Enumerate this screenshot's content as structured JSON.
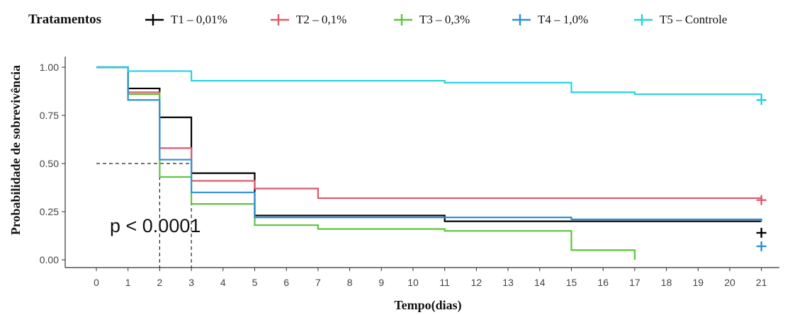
{
  "chart_data": {
    "type": "line",
    "step": true,
    "legend_title": "Tratamentos",
    "legend_position": "top",
    "xlabel": "Tempo(dias)",
    "ylabel": "Probabilidade de sobrevivência",
    "xlim": [
      0,
      21
    ],
    "ylim": [
      0,
      1
    ],
    "x_ticks": [
      "0",
      "1",
      "2",
      "3",
      "4",
      "5",
      "6",
      "7",
      "8",
      "9",
      "10",
      "11",
      "12",
      "13",
      "14",
      "15",
      "16",
      "17",
      "18",
      "19",
      "20",
      "21"
    ],
    "y_ticks": [
      "0.00",
      "0.25",
      "0.50",
      "0.75",
      "1.00"
    ],
    "annotation": "p < 0.0001",
    "median_line": {
      "y": 0.5,
      "x": [
        2,
        3
      ]
    },
    "series": [
      {
        "name": "T1 – 0,01%",
        "color": "#000000",
        "points": [
          [
            0,
            1.0
          ],
          [
            1,
            0.89
          ],
          [
            2,
            0.74
          ],
          [
            3,
            0.45
          ],
          [
            5,
            0.23
          ],
          [
            7,
            0.23
          ],
          [
            11,
            0.2
          ],
          [
            15,
            0.2
          ],
          [
            21,
            0.2
          ]
        ],
        "censor": [
          [
            21,
            0.14
          ]
        ]
      },
      {
        "name": "T2 – 0,1%",
        "color": "#e05a6a",
        "points": [
          [
            0,
            1.0
          ],
          [
            1,
            0.87
          ],
          [
            2,
            0.58
          ],
          [
            3,
            0.41
          ],
          [
            5,
            0.37
          ],
          [
            7,
            0.32
          ],
          [
            21,
            0.32
          ]
        ],
        "censor": [
          [
            21,
            0.31
          ]
        ]
      },
      {
        "name": "T3 – 0,3%",
        "color": "#5ec43c",
        "points": [
          [
            0,
            1.0
          ],
          [
            1,
            0.86
          ],
          [
            2,
            0.43
          ],
          [
            3,
            0.29
          ],
          [
            5,
            0.18
          ],
          [
            7,
            0.16
          ],
          [
            11,
            0.15
          ],
          [
            15,
            0.05
          ],
          [
            17,
            0.0
          ]
        ],
        "censor": []
      },
      {
        "name": "T4 – 1,0%",
        "color": "#2f8fd8",
        "points": [
          [
            0,
            1.0
          ],
          [
            1,
            0.83
          ],
          [
            2,
            0.52
          ],
          [
            3,
            0.35
          ],
          [
            5,
            0.22
          ],
          [
            11,
            0.22
          ],
          [
            15,
            0.21
          ],
          [
            21,
            0.2
          ]
        ],
        "censor": [
          [
            21,
            0.07
          ]
        ]
      },
      {
        "name": "T5 – Controle",
        "color": "#22d4e0",
        "points": [
          [
            0,
            1.0
          ],
          [
            1,
            0.98
          ],
          [
            3,
            0.93
          ],
          [
            11,
            0.92
          ],
          [
            15,
            0.87
          ],
          [
            17,
            0.86
          ],
          [
            21,
            0.85
          ]
        ],
        "censor": [
          [
            21,
            0.83
          ]
        ]
      }
    ]
  }
}
